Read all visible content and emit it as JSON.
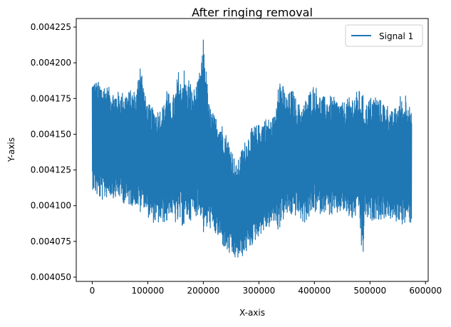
{
  "chart_data": {
    "type": "line",
    "title": "After ringing removal",
    "xlabel": "X-axis",
    "ylabel": "Y-axis",
    "xlim": [
      -28800,
      604800
    ],
    "ylim": [
      0.004047,
      0.004231
    ],
    "x_ticks": [
      0,
      100000,
      200000,
      300000,
      400000,
      500000,
      600000
    ],
    "x_tick_labels": [
      "0",
      "100000",
      "200000",
      "300000",
      "400000",
      "500000",
      "600000"
    ],
    "y_ticks": [
      0.00405,
      0.004075,
      0.0041,
      0.004125,
      0.00415,
      0.004175,
      0.0042,
      0.004225
    ],
    "y_tick_labels": [
      "0.004050",
      "0.004075",
      "0.004100",
      "0.004125",
      "0.004150",
      "0.004175",
      "0.004200",
      "0.004225"
    ],
    "grid": false,
    "legend_position": "top-right",
    "series": [
      {
        "name": "Signal 1",
        "color": "#1f77b4",
        "style": "dense oscillating signal",
        "envelope": {
          "x": [
            0,
            10000,
            20000,
            30000,
            40000,
            50000,
            60000,
            70000,
            80000,
            87000,
            90000,
            95000,
            100000,
            110000,
            120000,
            130000,
            135000,
            140000,
            150000,
            155000,
            160000,
            165000,
            170000,
            175000,
            180000,
            190000,
            198000,
            200000,
            205000,
            210000,
            220000,
            230000,
            240000,
            250000,
            260000,
            270000,
            280000,
            290000,
            300000,
            310000,
            320000,
            330000,
            335000,
            340000,
            350000,
            360000,
            370000,
            380000,
            390000,
            400000,
            410000,
            420000,
            430000,
            440000,
            450000,
            460000,
            470000,
            480000,
            487000,
            490000,
            500000,
            510000,
            520000,
            530000,
            540000,
            550000,
            555000,
            560000,
            565000,
            570000,
            575000
          ],
          "upper": [
            0.004189,
            0.004187,
            0.004186,
            0.004183,
            0.00418,
            0.00418,
            0.00418,
            0.004181,
            0.004181,
            0.004208,
            0.004192,
            0.004178,
            0.004172,
            0.004168,
            0.004168,
            0.004172,
            0.004188,
            0.004172,
            0.004182,
            0.004195,
            0.004187,
            0.004198,
            0.004184,
            0.004192,
            0.00418,
            0.004187,
            0.004205,
            0.004219,
            0.004196,
            0.004172,
            0.004163,
            0.004161,
            0.004152,
            0.004142,
            0.004128,
            0.004141,
            0.00415,
            0.004156,
            0.004157,
            0.004162,
            0.004161,
            0.004164,
            0.004197,
            0.004188,
            0.004177,
            0.004182,
            0.004172,
            0.004171,
            0.00418,
            0.004186,
            0.004178,
            0.004176,
            0.004177,
            0.004175,
            0.004172,
            0.004175,
            0.004178,
            0.004181,
            0.004179,
            0.00417,
            0.004176,
            0.004178,
            0.004174,
            0.004172,
            0.004166,
            0.004171,
            0.004178,
            0.004171,
            0.004182,
            0.004172,
            0.004164
          ],
          "lower": [
            0.004112,
            0.004105,
            0.004103,
            0.004107,
            0.004105,
            0.004105,
            0.0041,
            0.0041,
            0.0041,
            0.004093,
            0.0041,
            0.004098,
            0.004092,
            0.004088,
            0.004087,
            0.004088,
            0.004087,
            0.004095,
            0.004087,
            0.004086,
            0.004088,
            0.004082,
            0.004091,
            0.004088,
            0.004092,
            0.004093,
            0.004092,
            0.004079,
            0.004081,
            0.004085,
            0.00408,
            0.004075,
            0.004068,
            0.004064,
            0.004062,
            0.004064,
            0.004068,
            0.004073,
            0.004079,
            0.004082,
            0.004085,
            0.004088,
            0.004081,
            0.004087,
            0.004093,
            0.004092,
            0.004093,
            0.004087,
            0.004091,
            0.004095,
            0.004094,
            0.004096,
            0.004092,
            0.004093,
            0.004096,
            0.004092,
            0.004089,
            0.004096,
            0.004055,
            0.004092,
            0.004088,
            0.004091,
            0.004089,
            0.004092,
            0.004089,
            0.004088,
            0.00409,
            0.004085,
            0.004087,
            0.004088,
            0.004087
          ]
        }
      }
    ]
  }
}
